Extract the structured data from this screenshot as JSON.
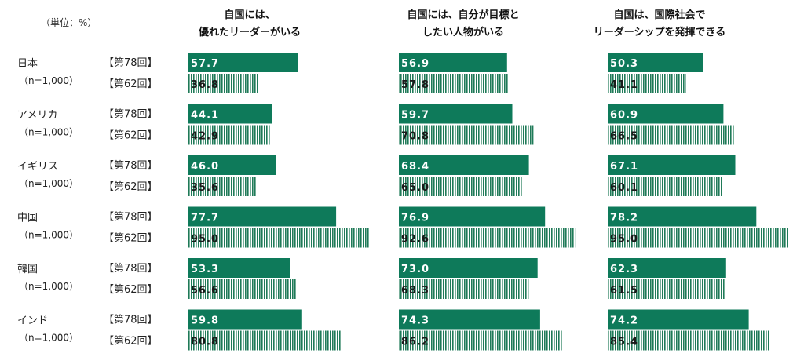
{
  "unit_label": "（単位：%）",
  "chart_data": {
    "type": "bar",
    "orientation": "horizontal",
    "columns": [
      {
        "title_lines": [
          "自国には、",
          "優れたリーダーがいる"
        ]
      },
      {
        "title_lines": [
          "自国には、自分が目標と",
          "したい人物がいる"
        ]
      },
      {
        "title_lines": [
          "自国は、国際社会で",
          "リーダーシップを発揮できる"
        ]
      }
    ],
    "survey_labels": [
      "【第78回】",
      "【第62回】"
    ],
    "countries": [
      {
        "name": "日本",
        "sample": "（n=1,000）",
        "values": [
          [
            57.7,
            36.8
          ],
          [
            56.9,
            57.8
          ],
          [
            50.3,
            41.1
          ]
        ]
      },
      {
        "name": "アメリカ",
        "sample": "（n=1,000）",
        "values": [
          [
            44.1,
            42.9
          ],
          [
            59.7,
            70.8
          ],
          [
            60.9,
            66.5
          ]
        ]
      },
      {
        "name": "イギリス",
        "sample": "（n=1,000）",
        "values": [
          [
            46.0,
            35.6
          ],
          [
            68.4,
            65.0
          ],
          [
            67.1,
            60.1
          ]
        ]
      },
      {
        "name": "中国",
        "sample": "（n=1,000）",
        "values": [
          [
            77.7,
            95.0
          ],
          [
            76.9,
            92.6
          ],
          [
            78.2,
            95.0
          ]
        ]
      },
      {
        "name": "韓国",
        "sample": "（n=1,000）",
        "values": [
          [
            53.3,
            56.6
          ],
          [
            73.0,
            68.3
          ],
          [
            62.3,
            61.5
          ]
        ]
      },
      {
        "name": "インド",
        "sample": "（n=1,000）",
        "values": [
          [
            59.8,
            80.8
          ],
          [
            74.3,
            86.2
          ],
          [
            74.2,
            85.4
          ]
        ]
      }
    ],
    "xlim": [
      0,
      95
    ],
    "colors": {
      "solid": "#0e7a5a",
      "hatch": "#1f7a58"
    }
  }
}
